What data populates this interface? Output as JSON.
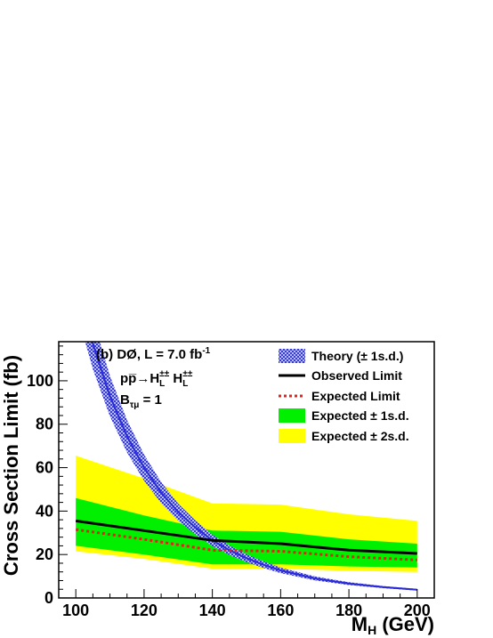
{
  "chart_data": {
    "type": "line",
    "title": "",
    "xlabel": "M",
    "xlabel_sub": "H",
    "xlabel_unit": " (GeV)",
    "ylabel": "Cross Section Limit (fb)",
    "xlim": [
      95,
      205
    ],
    "ylim": [
      0,
      118
    ],
    "x_ticks": [
      100,
      120,
      140,
      160,
      180,
      200
    ],
    "y_ticks": [
      0,
      20,
      40,
      60,
      80,
      100
    ],
    "legend_position": "top-right",
    "annotation": {
      "line1_prefix": "(b) DØ, L = 7.0 fb",
      "line1_sup": "-1",
      "line2_proc": "pp̅→H",
      "line2_sub": "L",
      "line2_sup": "±±",
      "line2_sep": " H",
      "line3_main": "B",
      "line3_sub": "τμ",
      "line3_rest": " = 1"
    },
    "legend": {
      "theory": "Theory (± 1s.d.)",
      "observed": "Observed Limit",
      "expected": "Expected Limit",
      "band1": "Expected ± 1s.d.",
      "band2": "Expected ± 2s.d."
    },
    "mass_points": [
      100,
      120,
      140,
      160,
      180,
      200
    ],
    "observed": [
      35.5,
      31,
      26.5,
      25,
      22,
      20.5
    ],
    "expected": [
      31.5,
      27,
      22,
      21.5,
      19,
      17.5
    ],
    "band1_low": [
      24,
      20,
      15.5,
      15.5,
      14.5,
      14
    ],
    "band1_high": [
      46,
      38,
      31,
      30.5,
      27,
      25
    ],
    "band2_low": [
      21.5,
      18,
      13.5,
      13.5,
      12.5,
      12
    ],
    "band2_high": [
      65.5,
      55,
      43.5,
      43,
      38.5,
      35.5
    ],
    "theory_x": [
      100,
      105,
      110,
      115,
      120,
      125,
      130,
      135,
      140,
      145,
      150,
      155,
      160,
      170,
      180,
      190,
      200
    ],
    "theory_central": [
      148,
      117,
      93,
      74.5,
      60,
      48.5,
      39.5,
      32.5,
      26.5,
      22,
      18.3,
      15.3,
      12.7,
      9.0,
      6.6,
      5.0,
      3.8
    ],
    "colors": {
      "theory": "#2a2ad8",
      "theory_hatch": "#9aa6f0",
      "observed": "#000000",
      "expected": "#e8201a",
      "band1": "#00f000",
      "band2": "#ffff00"
    }
  }
}
